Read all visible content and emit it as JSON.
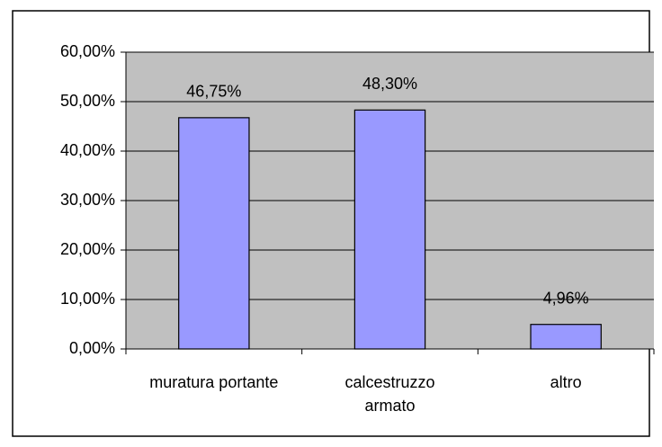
{
  "chart_data": {
    "type": "bar",
    "categories": [
      "muratura portante",
      "calcestruzzo armato",
      "altro"
    ],
    "values": [
      46.75,
      48.3,
      4.96
    ],
    "value_labels": [
      "46,75%",
      "48,30%",
      "4,96%"
    ],
    "color": "#9999ff",
    "ylim": [
      0,
      60
    ],
    "yticks": [
      {
        "value": 0,
        "label": "0,00%"
      },
      {
        "value": 10,
        "label": "10,00%"
      },
      {
        "value": 20,
        "label": "20,00%"
      },
      {
        "value": 30,
        "label": "30,00%"
      },
      {
        "value": 40,
        "label": "40,00%"
      },
      {
        "value": 50,
        "label": "50,00%"
      },
      {
        "value": 60,
        "label": "60,00%"
      }
    ],
    "grid": true
  }
}
